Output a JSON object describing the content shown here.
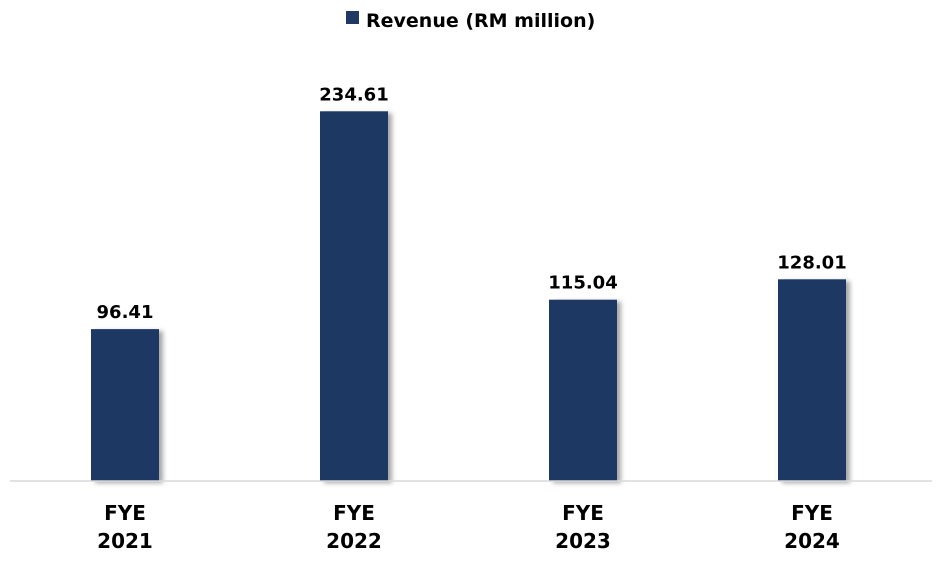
{
  "chart_data": {
    "type": "bar",
    "categories": [
      [
        "FYE",
        "2021"
      ],
      [
        "FYE",
        "2022"
      ],
      [
        "FYE",
        "2023"
      ],
      [
        "FYE",
        "2024"
      ]
    ],
    "series": [
      {
        "name": "Revenue (RM million)",
        "values": [
          96.41,
          234.61,
          115.04,
          128.01
        ],
        "labels": [
          "96.41",
          "234.61",
          "115.04",
          "128.01"
        ],
        "color": "#1f3864"
      }
    ],
    "ylim": [
      0,
      250
    ],
    "grid": false,
    "legend": "top-center",
    "axis_color": "#d9d9d9"
  }
}
